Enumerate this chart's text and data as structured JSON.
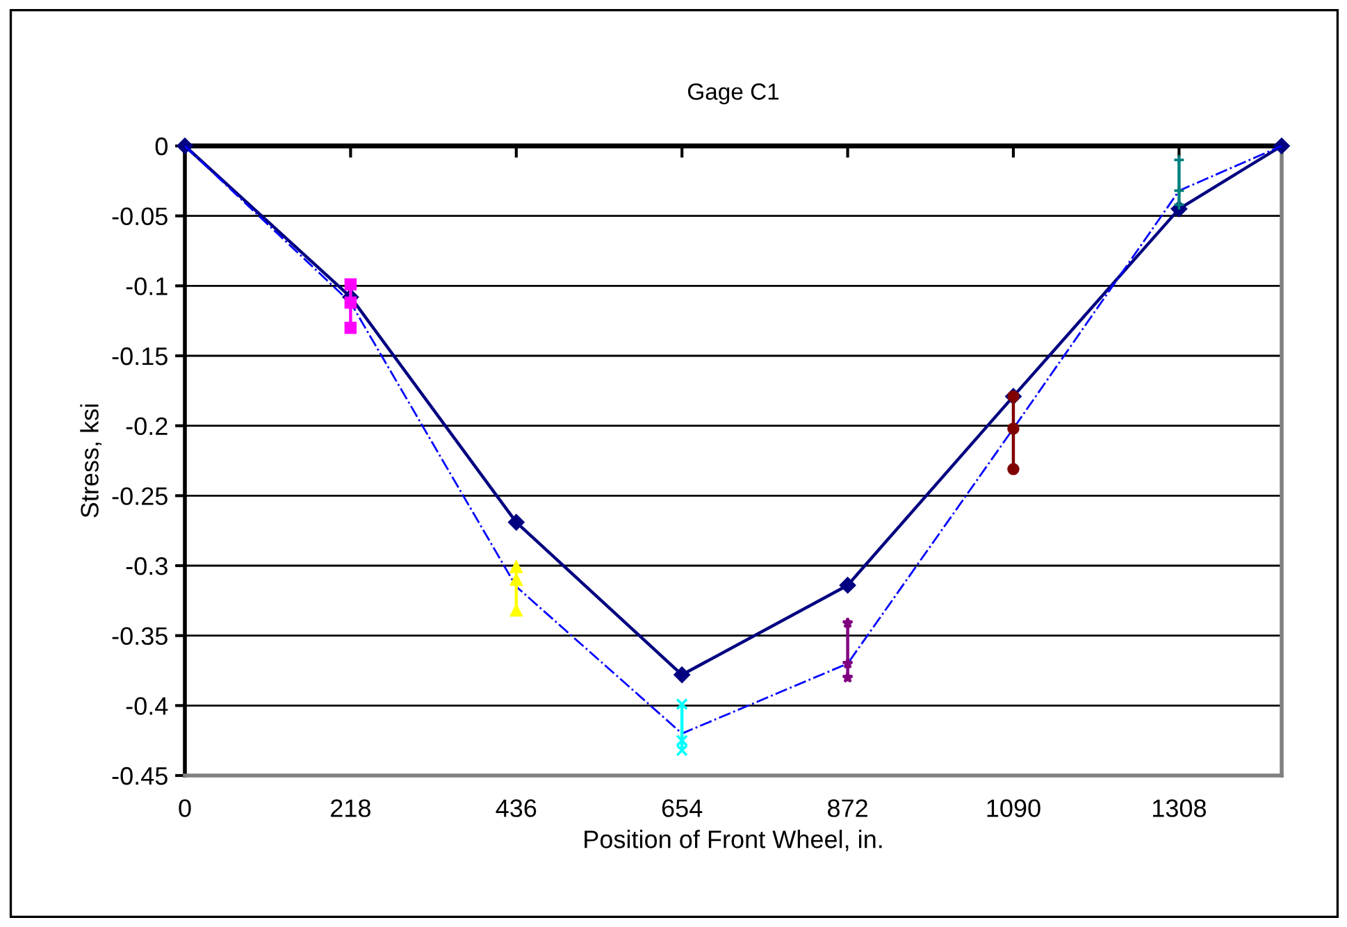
{
  "chart_data": {
    "type": "line",
    "title": "Gage C1",
    "xlabel": "Position of Front Wheel, in.",
    "ylabel": "Stress, ksi",
    "x": [
      0,
      218,
      436,
      654,
      872,
      1090,
      1308,
      1443
    ],
    "series": [
      {
        "color": "#000080",
        "marker": "diamond",
        "line_style": "solid",
        "values": [
          0,
          -0.108,
          -0.269,
          -0.378,
          -0.314,
          -0.179,
          -0.045,
          0
        ]
      },
      {
        "color": "#0000ff",
        "marker": "none",
        "line_style": "dashdot",
        "values": [
          0,
          -0.112,
          -0.315,
          -0.42,
          -0.37,
          -0.202,
          -0.032,
          0
        ]
      },
      {
        "color": "#ff00ff",
        "marker": "square",
        "line_style": "solid",
        "x": [
          218,
          218,
          218
        ],
        "values": [
          -0.099,
          -0.112,
          -0.13
        ]
      },
      {
        "color": "#ffff00",
        "marker": "triangle",
        "line_style": "solid",
        "x": [
          436,
          436,
          436
        ],
        "values": [
          -0.301,
          -0.31,
          -0.332
        ]
      },
      {
        "color": "#00ffff",
        "marker": "cross",
        "line_style": "solid",
        "x": [
          654,
          654,
          654
        ],
        "values": [
          -0.399,
          -0.425,
          -0.432
        ]
      },
      {
        "color": "#800080",
        "marker": "star",
        "line_style": "solid",
        "x": [
          872,
          872,
          872
        ],
        "values": [
          -0.341,
          -0.37,
          -0.38
        ]
      },
      {
        "color": "#800000",
        "marker": "circle",
        "line_style": "solid",
        "x": [
          1090,
          1090,
          1090
        ],
        "values": [
          -0.179,
          -0.202,
          -0.231
        ]
      },
      {
        "color": "#008080",
        "marker": "plus",
        "line_style": "solid",
        "x": [
          1308,
          1308,
          1308
        ],
        "values": [
          -0.01,
          -0.032,
          -0.042
        ]
      }
    ],
    "xlim": [
      0,
      1443
    ],
    "xticks": [
      0,
      218,
      436,
      654,
      872,
      1090,
      1308
    ],
    "ylim": [
      -0.45,
      0
    ],
    "yticks": [
      -0.45,
      -0.4,
      -0.35,
      -0.3,
      -0.25,
      -0.2,
      -0.15,
      -0.1,
      -0.05,
      0
    ],
    "grid": "y",
    "legend": false
  }
}
